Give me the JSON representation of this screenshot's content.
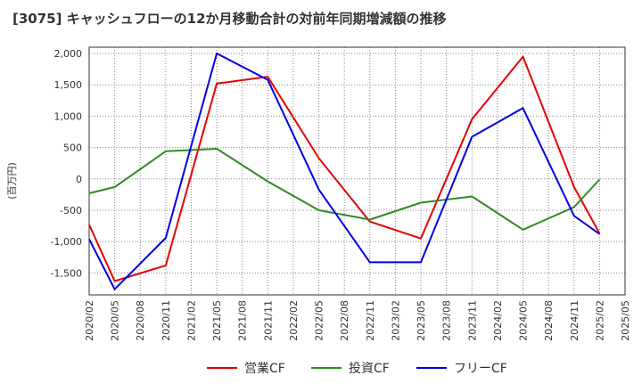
{
  "chart_data": {
    "type": "line",
    "title": "[3075]  キャッシュフローの12か月移動合計の対前年同期増減額の推移",
    "ylabel": "(百万円)",
    "xlabel": "",
    "ylim": [
      -1850,
      2100
    ],
    "yticks": [
      2000,
      1500,
      1000,
      500,
      0,
      -500,
      -1000,
      -1500
    ],
    "ytick_labels": [
      "2,000",
      "1,500",
      "1,000",
      "500",
      "0",
      "-500",
      "-1,000",
      "-1,500"
    ],
    "x_tick_labels": [
      "2020/02",
      "2020/05",
      "2020/08",
      "2020/11",
      "2021/02",
      "2021/05",
      "2021/08",
      "2021/11",
      "2022/02",
      "2022/05",
      "2022/08",
      "2022/11",
      "2023/02",
      "2023/05",
      "2023/08",
      "2023/11",
      "2024/02",
      "2024/05",
      "2024/08",
      "2024/11",
      "2025/02",
      "2025/05"
    ],
    "x_tick_index": [
      0,
      1,
      2,
      3,
      4,
      5,
      6,
      7,
      8,
      9,
      10,
      11,
      12,
      13,
      14,
      15,
      16,
      17,
      18,
      19,
      20,
      21
    ],
    "grid": true,
    "legend_position": "bottom",
    "series": [
      {
        "name": "営業CF",
        "color": "#e60000",
        "points": [
          [
            0,
            -730
          ],
          [
            1,
            -1630
          ],
          [
            3,
            -1380
          ],
          [
            5,
            1520
          ],
          [
            7,
            1630
          ],
          [
            9,
            330
          ],
          [
            11,
            -680
          ],
          [
            13,
            -950
          ],
          [
            15,
            950
          ],
          [
            17,
            1950
          ],
          [
            19,
            -130
          ],
          [
            20,
            -870
          ]
        ]
      },
      {
        "name": "投資CF",
        "color": "#2e8b22",
        "points": [
          [
            0,
            -230
          ],
          [
            1,
            -130
          ],
          [
            3,
            440
          ],
          [
            5,
            480
          ],
          [
            7,
            -40
          ],
          [
            9,
            -500
          ],
          [
            11,
            -650
          ],
          [
            13,
            -380
          ],
          [
            15,
            -280
          ],
          [
            17,
            -810
          ],
          [
            19,
            -450
          ],
          [
            20,
            -10
          ]
        ]
      },
      {
        "name": "フリーCF",
        "color": "#0000e6",
        "points": [
          [
            0,
            -960
          ],
          [
            1,
            -1760
          ],
          [
            3,
            -940
          ],
          [
            5,
            2000
          ],
          [
            7,
            1580
          ],
          [
            9,
            -170
          ],
          [
            11,
            -1330
          ],
          [
            13,
            -1330
          ],
          [
            15,
            670
          ],
          [
            17,
            1130
          ],
          [
            19,
            -590
          ],
          [
            20,
            -880
          ]
        ]
      }
    ]
  }
}
